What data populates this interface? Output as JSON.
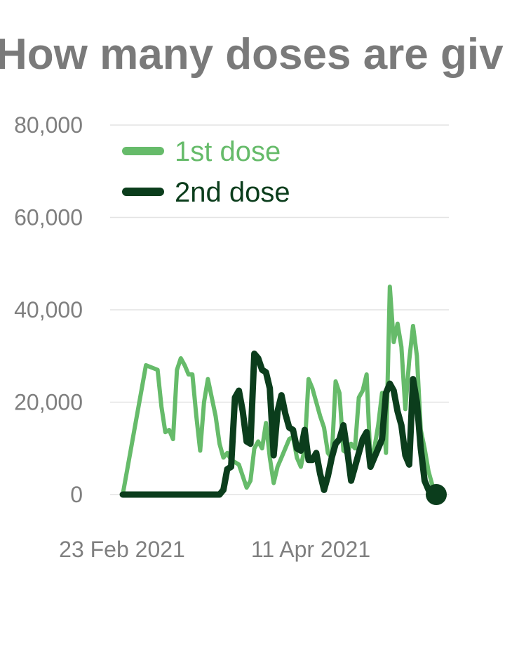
{
  "title": "How many doses are given per day?",
  "colors": {
    "dose1": "#66bb6a",
    "dose2": "#0b3d1c",
    "grid": "#e3e3e3",
    "text": "#7f7f7f"
  },
  "chart_data": {
    "type": "line",
    "title": "How many doses are given per day?",
    "xlabel": "",
    "ylabel": "",
    "ylim": [
      0,
      80000
    ],
    "y_ticks": [
      0,
      20000,
      40000,
      60000,
      80000
    ],
    "y_tick_labels": [
      "0",
      "20,000",
      "40,000",
      "60,000",
      "80,000"
    ],
    "x_tick_labels": [
      "23 Feb 2021",
      "11 Apr 2021"
    ],
    "x_start": "2021-02-23",
    "legend_placement": "top-left",
    "grid": true,
    "series": [
      {
        "name": "1st dose",
        "x": [
          "2021-02-23",
          "2021-03-01",
          "2021-03-04",
          "2021-03-05",
          "2021-03-06",
          "2021-03-07",
          "2021-03-08",
          "2021-03-09",
          "2021-03-10",
          "2021-03-11",
          "2021-03-12",
          "2021-03-13",
          "2021-03-14",
          "2021-03-15",
          "2021-03-16",
          "2021-03-17",
          "2021-03-18",
          "2021-03-19",
          "2021-03-20",
          "2021-03-21",
          "2021-03-22",
          "2021-03-23",
          "2021-03-24",
          "2021-03-25",
          "2021-03-26",
          "2021-03-27",
          "2021-03-28",
          "2021-03-29",
          "2021-03-30",
          "2021-03-31",
          "2021-04-01",
          "2021-04-02",
          "2021-04-03",
          "2021-04-04",
          "2021-04-05",
          "2021-04-06",
          "2021-04-07",
          "2021-04-08",
          "2021-04-09",
          "2021-04-10",
          "2021-04-11",
          "2021-04-12",
          "2021-04-13",
          "2021-04-14",
          "2021-04-15",
          "2021-04-16",
          "2021-04-17",
          "2021-04-18",
          "2021-04-19",
          "2021-04-20",
          "2021-04-21",
          "2021-04-22",
          "2021-04-23",
          "2021-04-24",
          "2021-04-25",
          "2021-04-26",
          "2021-04-27",
          "2021-04-28",
          "2021-04-29",
          "2021-04-30",
          "2021-05-01",
          "2021-05-02",
          "2021-05-03",
          "2021-05-04",
          "2021-05-05",
          "2021-05-06",
          "2021-05-07",
          "2021-05-08",
          "2021-05-09",
          "2021-05-10",
          "2021-05-11",
          "2021-05-12",
          "2021-05-13",
          "2021-05-14",
          "2021-05-15"
        ],
        "values": [
          0,
          28000,
          27000,
          19000,
          13500,
          14000,
          12000,
          27000,
          29500,
          28000,
          26000,
          26000,
          17000,
          9500,
          20000,
          25000,
          21000,
          17000,
          11000,
          8000,
          9000,
          7500,
          7000,
          6500,
          4000,
          1500,
          3000,
          10000,
          11500,
          10000,
          15500,
          8000,
          2500,
          6000,
          8000,
          10000,
          12000,
          12500,
          8000,
          6000,
          10000,
          25000,
          23000,
          20000,
          17000,
          14500,
          9000,
          8000,
          24500,
          22000,
          9500,
          9000,
          11000,
          10000,
          21000,
          22500,
          26000,
          7000,
          10000,
          15000,
          22000,
          9000,
          45000,
          33000,
          37000,
          32000,
          18500,
          29000,
          36500,
          30000,
          14000,
          10000,
          5000,
          2000,
          0
        ]
      },
      {
        "name": "2nd dose",
        "x": [
          "2021-02-23",
          "2021-03-01",
          "2021-03-08",
          "2021-03-15",
          "2021-03-20",
          "2021-03-21",
          "2021-03-22",
          "2021-03-23",
          "2021-03-24",
          "2021-03-25",
          "2021-03-26",
          "2021-03-27",
          "2021-03-28",
          "2021-03-29",
          "2021-03-30",
          "2021-03-31",
          "2021-04-01",
          "2021-04-02",
          "2021-04-03",
          "2021-04-04",
          "2021-04-05",
          "2021-04-06",
          "2021-04-07",
          "2021-04-08",
          "2021-04-09",
          "2021-04-10",
          "2021-04-11",
          "2021-04-12",
          "2021-04-13",
          "2021-04-14",
          "2021-04-15",
          "2021-04-16",
          "2021-04-17",
          "2021-04-18",
          "2021-04-19",
          "2021-04-20",
          "2021-04-21",
          "2021-04-22",
          "2021-04-23",
          "2021-04-24",
          "2021-04-25",
          "2021-04-26",
          "2021-04-27",
          "2021-04-28",
          "2021-04-29",
          "2021-04-30",
          "2021-05-01",
          "2021-05-02",
          "2021-05-03",
          "2021-05-04",
          "2021-05-05",
          "2021-05-06",
          "2021-05-07",
          "2021-05-08",
          "2021-05-09",
          "2021-05-10",
          "2021-05-11",
          "2021-05-12",
          "2021-05-13",
          "2021-05-14",
          "2021-05-15"
        ],
        "values": [
          0,
          0,
          0,
          0,
          0,
          1000,
          5500,
          6000,
          21000,
          22500,
          18000,
          11500,
          11000,
          30500,
          29500,
          27000,
          26500,
          23000,
          8500,
          18000,
          21500,
          17500,
          14500,
          14000,
          10000,
          9500,
          14000,
          7500,
          7500,
          9000,
          4500,
          1000,
          4000,
          8000,
          11000,
          12000,
          15000,
          9500,
          3000,
          6000,
          9000,
          12000,
          13500,
          6000,
          8000,
          10000,
          12000,
          22000,
          24000,
          22500,
          18000,
          15000,
          8500,
          6500,
          25000,
          20000,
          10000,
          3000,
          1000,
          0,
          0
        ]
      }
    ]
  }
}
